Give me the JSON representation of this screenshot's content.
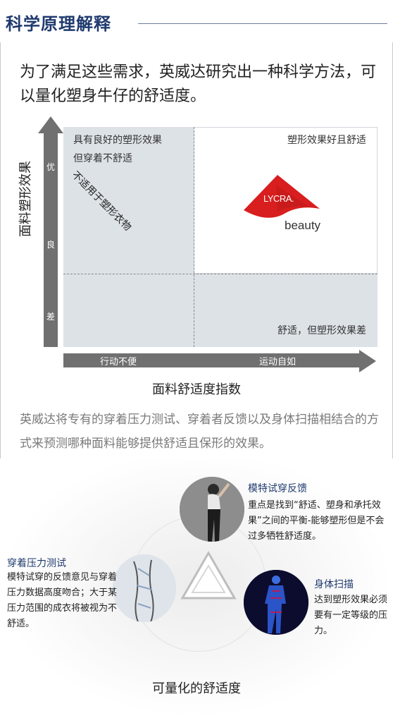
{
  "header": {
    "title": "科学原理解释"
  },
  "intro": "为了满足这些需求，英威达研究出一种科学方法，可以量化塑身牛仔的舒适度。",
  "chart": {
    "quadrants": {
      "top_left": [
        "具有良好的塑形效果",
        "但穿着不舒适"
      ],
      "top_right": "塑形效果好且舒适",
      "bottom_right": "舒适，但塑形效果差",
      "diagonal": "不适用于塑形衣物"
    },
    "logo": {
      "brand": "LYCRA.",
      "sub": "beauty"
    },
    "y_axis": {
      "label": "面料塑形效果",
      "ticks": [
        "优",
        "良",
        "差"
      ]
    },
    "x_axis": {
      "label": "面料舒适度指数",
      "ticks": [
        "行动不便",
        "运动自如"
      ]
    }
  },
  "para2": "英威达将专有的穿着压力测试、穿着者反馈以及身体扫描相结合的方式来预测哪种面料能够提供舒适且保形的效果。",
  "diagram": {
    "model_feedback": {
      "title": "模特试穿反馈",
      "body": "重点是找到“舒适、塑身和承托效果”之间的平衡-能够塑形但是不会过多牺牲舒适度。"
    },
    "pressure_test": {
      "title": "穿着压力测试",
      "body": "模特试穿的反馈意见与穿着压力数据高度吻合；大于某压力范围的成衣将被视为不舒适。"
    },
    "body_scan": {
      "title": "身体扫描",
      "body": "达到塑形效果必须要有一定等级的压力。"
    },
    "caption": "可量化的舒适度"
  },
  "colors": {
    "header": "#1f3a6e",
    "axis": "#707070",
    "quadrant": "#dde2e7",
    "lycra_red": "#d81e1e"
  }
}
